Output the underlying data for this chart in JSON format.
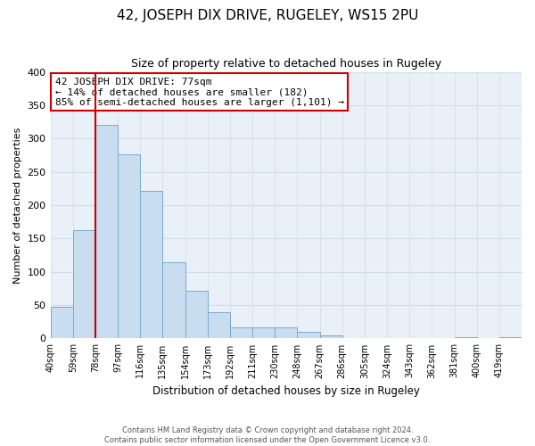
{
  "title": "42, JOSEPH DIX DRIVE, RUGELEY, WS15 2PU",
  "subtitle": "Size of property relative to detached houses in Rugeley",
  "xlabel": "Distribution of detached houses by size in Rugeley",
  "ylabel": "Number of detached properties",
  "bar_color": "#c8ddf0",
  "bar_edge_color": "#7aaacc",
  "marker_color": "#cc0000",
  "marker_bin_index": 2,
  "categories": [
    "40sqm",
    "59sqm",
    "78sqm",
    "97sqm",
    "116sqm",
    "135sqm",
    "154sqm",
    "173sqm",
    "192sqm",
    "211sqm",
    "230sqm",
    "248sqm",
    "267sqm",
    "286sqm",
    "305sqm",
    "324sqm",
    "343sqm",
    "362sqm",
    "381sqm",
    "400sqm",
    "419sqm"
  ],
  "values": [
    47,
    163,
    320,
    276,
    221,
    114,
    71,
    39,
    17,
    17,
    17,
    10,
    5,
    0,
    0,
    0,
    0,
    0,
    2,
    0,
    2
  ],
  "ylim": [
    0,
    400
  ],
  "yticks": [
    0,
    50,
    100,
    150,
    200,
    250,
    300,
    350,
    400
  ],
  "annotation_title": "42 JOSEPH DIX DRIVE: 77sqm",
  "annotation_line1": "← 14% of detached houses are smaller (182)",
  "annotation_line2": "85% of semi-detached houses are larger (1,101) →",
  "annotation_box_color": "#ffffff",
  "annotation_box_edge": "#cc0000",
  "grid_color": "#d0dde8",
  "bg_color": "#eaf0f8",
  "footer_line1": "Contains HM Land Registry data © Crown copyright and database right 2024.",
  "footer_line2": "Contains public sector information licensed under the Open Government Licence v3.0."
}
